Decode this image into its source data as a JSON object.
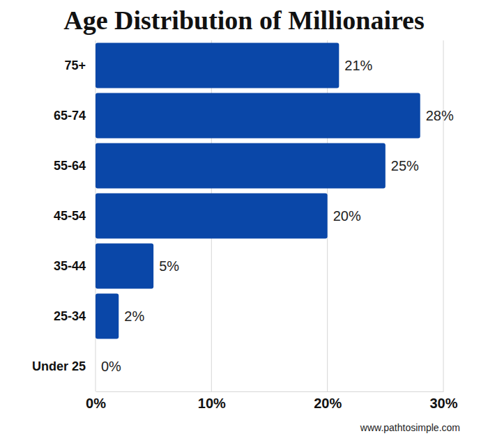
{
  "chart_data": {
    "type": "bar",
    "title": "Age Distribution of Millionaires",
    "orientation": "horizontal",
    "categories": [
      "75+",
      "65-74",
      "55-64",
      "45-54",
      "35-44",
      "25-34",
      "Under 25"
    ],
    "values": [
      21,
      28,
      25,
      20,
      5,
      2,
      0
    ],
    "value_labels": [
      "21%",
      "28%",
      "25%",
      "20%",
      "5%",
      "2%",
      "0%"
    ],
    "data_labels": true,
    "color": "#0a47a8",
    "xlim": [
      0,
      30
    ],
    "xticks": [
      {
        "value": 0,
        "label": "0%"
      },
      {
        "value": 10,
        "label": "10%"
      },
      {
        "value": 20,
        "label": "20%"
      },
      {
        "value": 30,
        "label": "30%"
      }
    ],
    "grid": true,
    "source": "www.pathtosimple.com"
  }
}
